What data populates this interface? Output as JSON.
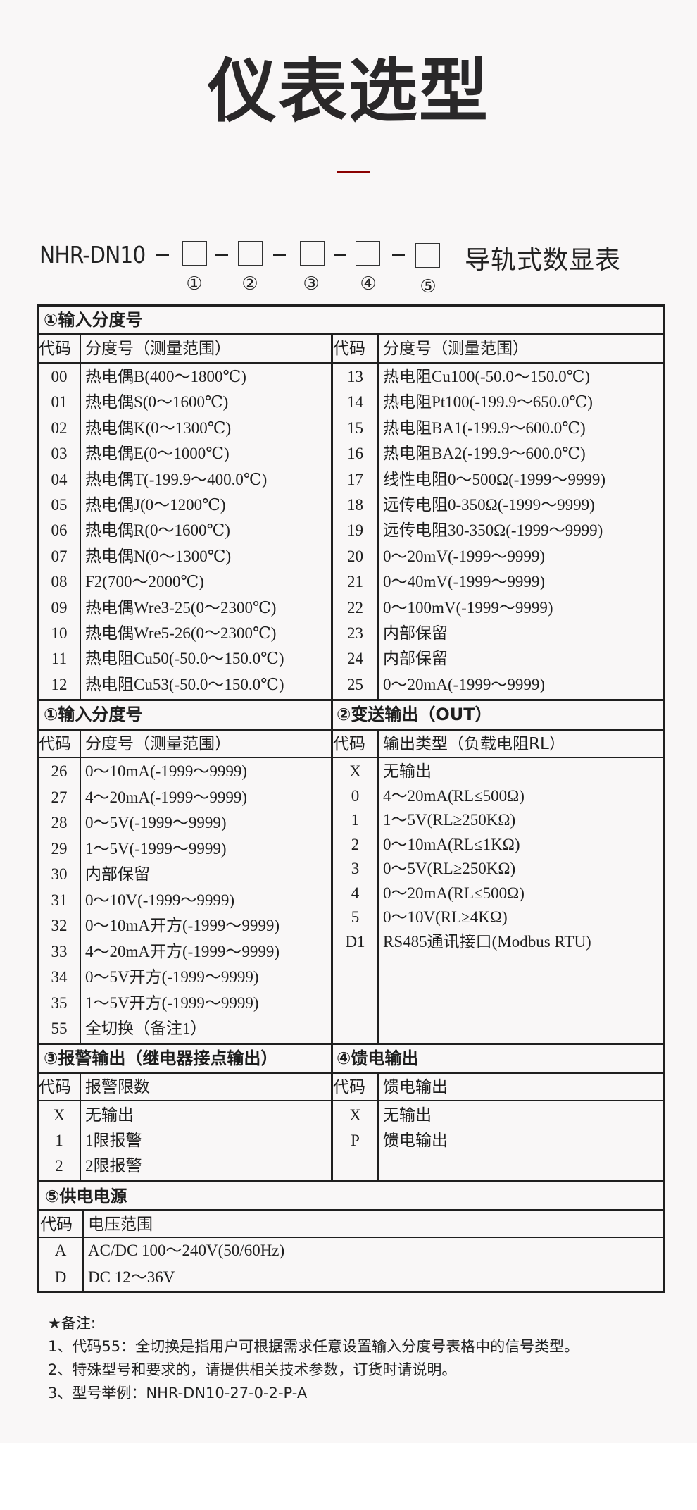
{
  "title": "仪表选型",
  "accent_color": "#8b0000",
  "model": {
    "prefix": "NHR-DN10",
    "slots": [
      "①",
      "②",
      "③",
      "④",
      "⑤"
    ],
    "suffix": "导轨式数显表"
  },
  "input_a": {
    "title": "①输入分度号",
    "col_code": "代码",
    "col_desc": "分度号（测量范围）",
    "left": [
      {
        "code": "00",
        "desc": "热电偶B(400～1800℃)"
      },
      {
        "code": "01",
        "desc": "热电偶S(0～1600℃)"
      },
      {
        "code": "02",
        "desc": "热电偶K(0～1300℃)"
      },
      {
        "code": "03",
        "desc": "热电偶E(0～1000℃)"
      },
      {
        "code": "04",
        "desc": "热电偶T(-199.9～400.0℃)"
      },
      {
        "code": "05",
        "desc": "热电偶J(0～1200℃)"
      },
      {
        "code": "06",
        "desc": "热电偶R(0～1600℃)"
      },
      {
        "code": "07",
        "desc": "热电偶N(0～1300℃)"
      },
      {
        "code": "08",
        "desc": "F2(700～2000℃)"
      },
      {
        "code": "09",
        "desc": "热电偶Wre3-25(0～2300℃)"
      },
      {
        "code": "10",
        "desc": "热电偶Wre5-26(0～2300℃)"
      },
      {
        "code": "11",
        "desc": "热电阻Cu50(-50.0～150.0℃)"
      },
      {
        "code": "12",
        "desc": "热电阻Cu53(-50.0～150.0℃)"
      }
    ],
    "right": [
      {
        "code": "13",
        "desc": "热电阻Cu100(-50.0～150.0℃)"
      },
      {
        "code": "14",
        "desc": "热电阻Pt100(-199.9～650.0℃)"
      },
      {
        "code": "15",
        "desc": "热电阻BA1(-199.9～600.0℃)"
      },
      {
        "code": "16",
        "desc": "热电阻BA2(-199.9～600.0℃)"
      },
      {
        "code": "17",
        "desc": "线性电阻0～500Ω(-1999～9999)"
      },
      {
        "code": "18",
        "desc": "远传电阻0-350Ω(-1999～9999)"
      },
      {
        "code": "19",
        "desc": "远传电阻30-350Ω(-1999～9999)"
      },
      {
        "code": "20",
        "desc": "0～20mV(-1999～9999)"
      },
      {
        "code": "21",
        "desc": "0～40mV(-1999～9999)"
      },
      {
        "code": "22",
        "desc": "0～100mV(-1999～9999)"
      },
      {
        "code": "23",
        "desc": "内部保留"
      },
      {
        "code": "24",
        "desc": "内部保留"
      },
      {
        "code": "25",
        "desc": "0～20mA(-1999～9999)"
      }
    ]
  },
  "input_b": {
    "title": "①输入分度号",
    "col_code": "代码",
    "col_desc": "分度号（测量范围）",
    "rows": [
      {
        "code": "26",
        "desc": "0～10mA(-1999～9999)"
      },
      {
        "code": "27",
        "desc": "4～20mA(-1999～9999)"
      },
      {
        "code": "28",
        "desc": "0～5V(-1999～9999)"
      },
      {
        "code": "29",
        "desc": "1～5V(-1999～9999)"
      },
      {
        "code": "30",
        "desc": "内部保留"
      },
      {
        "code": "31",
        "desc": "0～10V(-1999～9999)"
      },
      {
        "code": "32",
        "desc": "0～10mA开方(-1999～9999)"
      },
      {
        "code": "33",
        "desc": "4～20mA开方(-1999～9999)"
      },
      {
        "code": "34",
        "desc": "0～5V开方(-1999～9999)"
      },
      {
        "code": "35",
        "desc": "1～5V开方(-1999～9999)"
      },
      {
        "code": "55",
        "desc": "全切换（备注1）"
      }
    ]
  },
  "output": {
    "title": "②变送输出（OUT）",
    "col_code": "代码",
    "col_desc": "输出类型（负载电阻RL）",
    "rows": [
      {
        "code": "X",
        "desc": "无输出"
      },
      {
        "code": "0",
        "desc": "4～20mA(RL≤500Ω)"
      },
      {
        "code": "1",
        "desc": "1～5V(RL≥250KΩ)"
      },
      {
        "code": "2",
        "desc": "0～10mA(RL≤1KΩ)"
      },
      {
        "code": "3",
        "desc": "0～5V(RL≥250KΩ)"
      },
      {
        "code": "4",
        "desc": "0～20mA(RL≤500Ω)"
      },
      {
        "code": "5",
        "desc": "0～10V(RL≥4KΩ)"
      },
      {
        "code": "D1",
        "desc": "RS485通讯接口(Modbus RTU)"
      }
    ]
  },
  "alarm": {
    "title": "③报警输出（继电器接点输出）",
    "col_code": "代码",
    "col_desc": "报警限数",
    "rows": [
      {
        "code": "X",
        "desc": "无输出"
      },
      {
        "code": "1",
        "desc": "1限报警"
      },
      {
        "code": "2",
        "desc": "2限报警"
      }
    ]
  },
  "feed": {
    "title": "④馈电输出",
    "col_code": "代码",
    "col_desc": "馈电输出",
    "rows": [
      {
        "code": "X",
        "desc": "无输出"
      },
      {
        "code": "P",
        "desc": "馈电输出"
      }
    ]
  },
  "power": {
    "title": "⑤供电电源",
    "col_code": "代码",
    "col_desc": "电压范围",
    "rows": [
      {
        "code": "A",
        "desc": "AC/DC 100～240V(50/60Hz)"
      },
      {
        "code": "D",
        "desc": "DC 12～36V"
      }
    ]
  },
  "notes": {
    "heading": "★备注:",
    "items": [
      "1、代码55：全切换是指用户可根据需求任意设置输入分度号表格中的信号类型。",
      "2、特殊型号和要求的，请提供相关技术参数，订货时请说明。",
      "3、型号举例：NHR-DN10-27-0-2-P-A"
    ]
  }
}
